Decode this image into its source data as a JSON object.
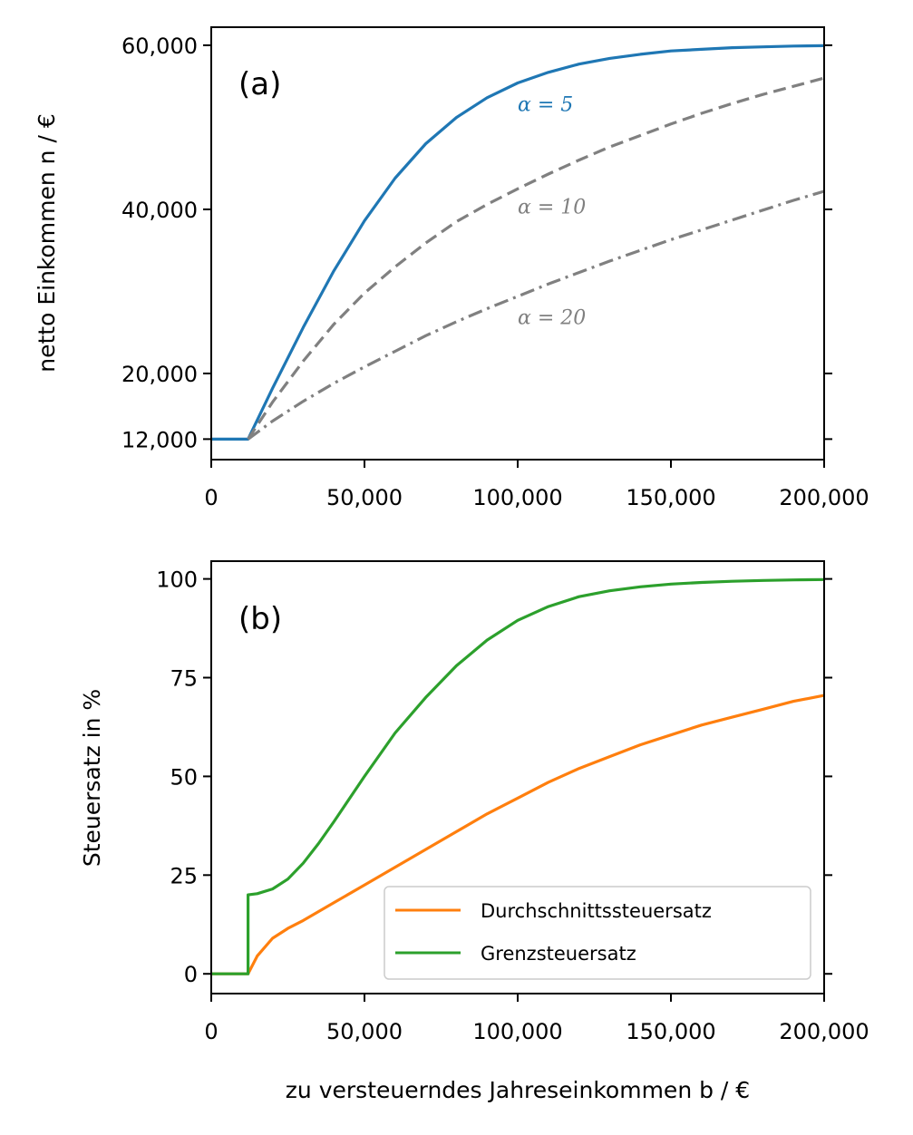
{
  "chart_data": [
    {
      "type": "line",
      "panel_label": "(a)",
      "ylabel": "netto Einkommen n / €",
      "xlim": [
        0,
        200000
      ],
      "ylim": [
        9500,
        62200
      ],
      "xticks": [
        0,
        50000,
        100000,
        150000,
        200000
      ],
      "xtick_labels": [
        "0",
        "50,000",
        "100,000",
        "150,000",
        "200,000"
      ],
      "yticks": [
        12000,
        20000,
        40000,
        60000
      ],
      "ytick_labels": [
        "12,000",
        "20,000",
        "40,000",
        "60,000"
      ],
      "grid": false,
      "series": [
        {
          "name": "α = 5",
          "color": "#1f77b4",
          "style": "solid",
          "x": [
            0,
            12000,
            20000,
            30000,
            40000,
            50000,
            60000,
            70000,
            80000,
            90000,
            100000,
            110000,
            120000,
            130000,
            140000,
            150000,
            160000,
            170000,
            180000,
            190000,
            200000
          ],
          "y": [
            12000,
            12000,
            18200,
            25600,
            32500,
            38600,
            43800,
            48000,
            51200,
            53600,
            55400,
            56700,
            57700,
            58400,
            58900,
            59300,
            59500,
            59700,
            59800,
            59900,
            59950
          ]
        },
        {
          "name": "α = 10",
          "color": "#808080",
          "style": "dashed",
          "x": [
            12000,
            20000,
            30000,
            40000,
            50000,
            60000,
            70000,
            80000,
            90000,
            100000,
            110000,
            120000,
            130000,
            140000,
            150000,
            160000,
            170000,
            180000,
            190000,
            200000
          ],
          "y": [
            12000,
            16500,
            21500,
            26000,
            29800,
            33000,
            35900,
            38500,
            40600,
            42500,
            44300,
            46000,
            47600,
            49000,
            50400,
            51700,
            52900,
            54000,
            55000,
            56000
          ]
        },
        {
          "name": "α = 20",
          "color": "#808080",
          "style": "dashdot",
          "x": [
            12000,
            20000,
            30000,
            40000,
            50000,
            60000,
            70000,
            80000,
            90000,
            100000,
            110000,
            120000,
            130000,
            140000,
            150000,
            160000,
            170000,
            180000,
            190000,
            200000
          ],
          "y": [
            12000,
            14200,
            16600,
            18800,
            20800,
            22700,
            24600,
            26300,
            27900,
            29400,
            30900,
            32300,
            33700,
            35000,
            36300,
            37500,
            38700,
            39900,
            41100,
            42200
          ]
        }
      ],
      "annotations": [
        {
          "text": "α = 5",
          "color": "#1f77b4",
          "x": 100000,
          "y": 52000
        },
        {
          "text": "α = 10",
          "color": "#808080",
          "x": 100000,
          "y": 39500
        },
        {
          "text": "α = 20",
          "color": "#808080",
          "x": 100000,
          "y": 26000
        }
      ]
    },
    {
      "type": "line",
      "panel_label": "(b)",
      "xlabel": "zu versteuerndes Jahreseinkommen b / €",
      "ylabel": "Steuersatz in %",
      "xlim": [
        0,
        200000
      ],
      "ylim": [
        -5,
        104.5
      ],
      "xticks": [
        0,
        50000,
        100000,
        150000,
        200000
      ],
      "xtick_labels": [
        "0",
        "50,000",
        "100,000",
        "150,000",
        "200,000"
      ],
      "yticks": [
        0,
        25,
        50,
        75,
        100
      ],
      "ytick_labels": [
        "0",
        "25",
        "50",
        "75",
        "100"
      ],
      "grid": false,
      "legend_position": "lower-right",
      "series": [
        {
          "name": "Durchschnittssteuersatz",
          "color": "#ff7f0e",
          "style": "solid",
          "x": [
            0,
            12000,
            15000,
            20000,
            25000,
            30000,
            40000,
            50000,
            60000,
            70000,
            80000,
            90000,
            100000,
            110000,
            120000,
            130000,
            140000,
            150000,
            160000,
            170000,
            180000,
            190000,
            200000
          ],
          "y": [
            0,
            0,
            4.5,
            9,
            11.5,
            13.5,
            18,
            22.5,
            27,
            31.5,
            36,
            40.5,
            44.5,
            48.5,
            52,
            55,
            58,
            60.5,
            63,
            65,
            67,
            69,
            70.5
          ]
        },
        {
          "name": "Grenzsteuersatz",
          "color": "#2ca02c",
          "style": "solid",
          "x": [
            0,
            12000,
            12000,
            15000,
            20000,
            25000,
            30000,
            35000,
            40000,
            50000,
            60000,
            70000,
            80000,
            90000,
            100000,
            110000,
            120000,
            130000,
            140000,
            150000,
            160000,
            170000,
            180000,
            190000,
            200000
          ],
          "y": [
            0,
            0,
            20,
            20.3,
            21.5,
            24,
            28,
            33,
            38.5,
            50,
            61,
            70,
            78,
            84.5,
            89.5,
            93,
            95.5,
            97,
            98,
            98.7,
            99.1,
            99.4,
            99.6,
            99.75,
            99.85
          ]
        }
      ]
    }
  ]
}
